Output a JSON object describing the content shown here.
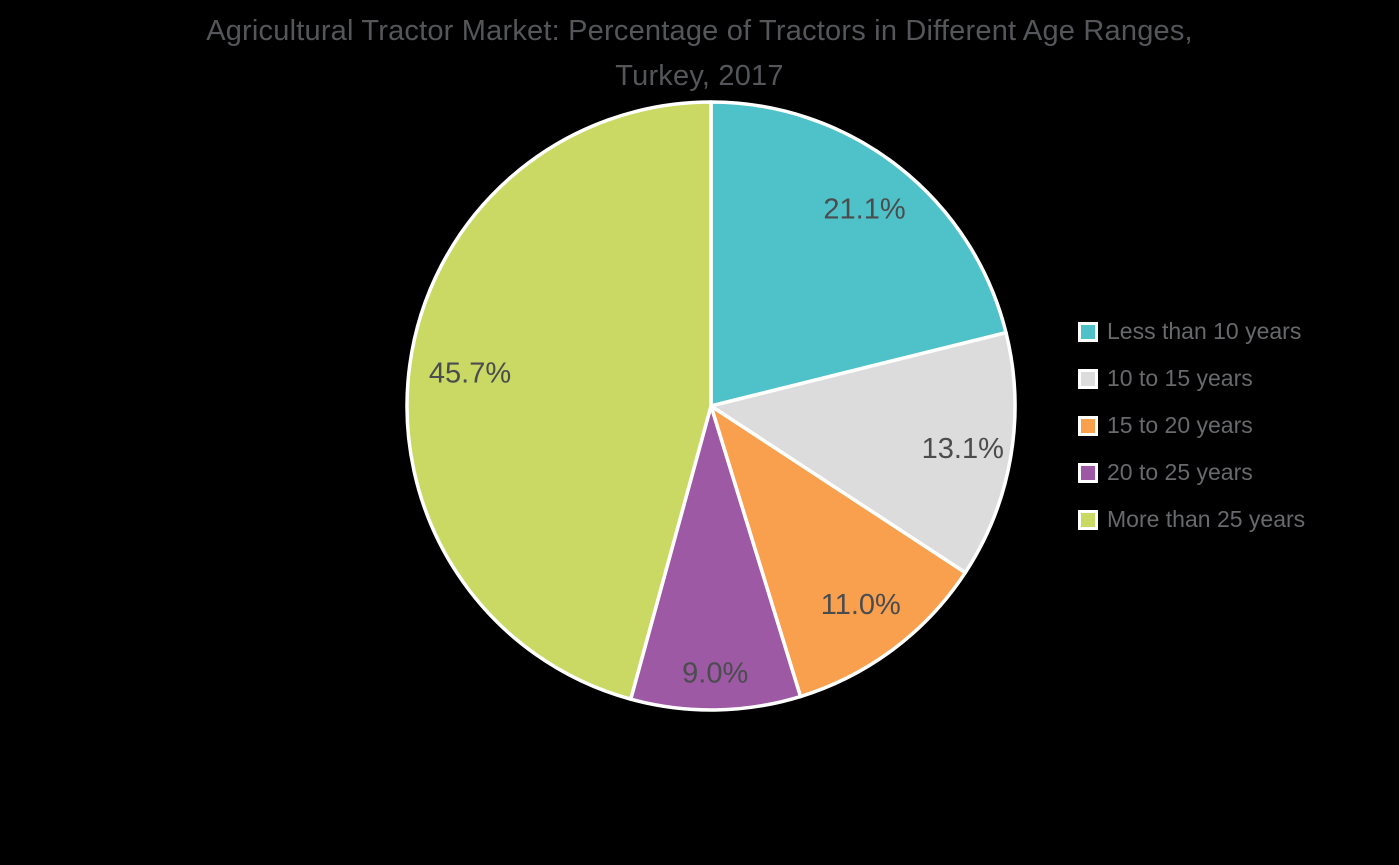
{
  "chart_data": {
    "type": "pie",
    "title": "Agricultural Tractor Market: Percentage of Tractors in Different Age Ranges, Turkey, 2017",
    "legend_position": "right",
    "start_angle": "top",
    "direction": "clockwise",
    "background_color": "#000000",
    "title_color": "#55565A",
    "slice_label_color": "#4B4C4E",
    "legend_text_color": "#68696C",
    "slice_border_color": "#FFFFFF",
    "slices": [
      {
        "label": "Less than 10 years",
        "value": 21.1,
        "display": "21.1%",
        "color": "#4FC2C9"
      },
      {
        "label": "10 to 15 years",
        "value": 13.1,
        "display": "13.1%",
        "color": "#DCDCDC"
      },
      {
        "label": "15 to 20 years",
        "value": 11.0,
        "display": "11.0%",
        "color": "#F9A04F"
      },
      {
        "label": "20 to 25 years",
        "value": 9.0,
        "display": "9.0%",
        "color": "#9D59A4"
      },
      {
        "label": "More than 25 years",
        "value": 45.7,
        "display": "45.7%",
        "color": "#C9D964"
      }
    ]
  }
}
